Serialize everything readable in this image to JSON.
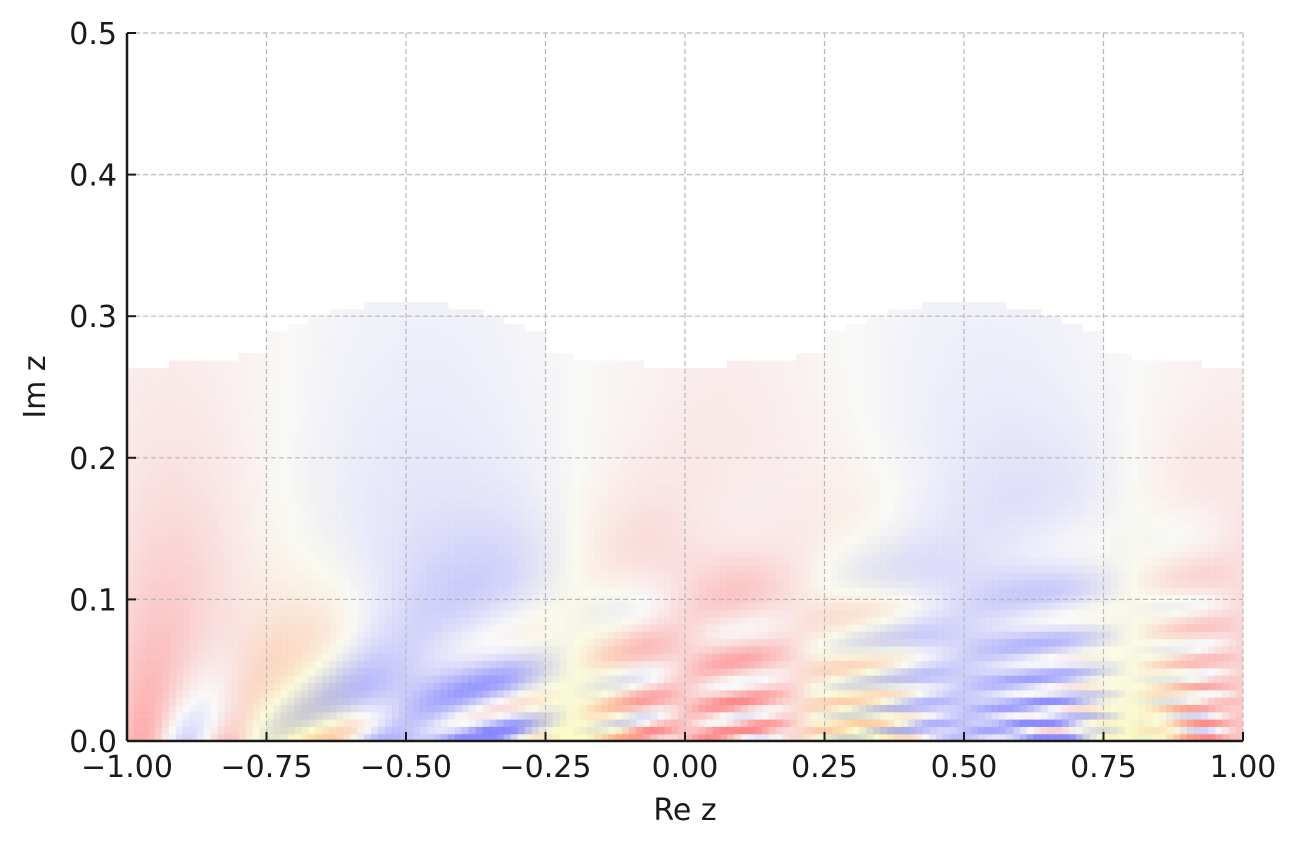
{
  "chart_data": {
    "type": "heatmap",
    "title": "",
    "xlabel": "Re z",
    "ylabel": "Im z",
    "xlim": [
      -1.0,
      1.0
    ],
    "ylim": [
      0.0,
      0.5
    ],
    "x_ticks": [
      -1.0,
      -0.75,
      -0.5,
      -0.25,
      0.0,
      0.25,
      0.5,
      0.75,
      1.0
    ],
    "x_tick_labels": [
      "−1.00",
      "−0.75",
      "−0.50",
      "−0.25",
      "0.00",
      "0.25",
      "0.50",
      "0.75",
      "1.00"
    ],
    "y_ticks": [
      0.0,
      0.1,
      0.2,
      0.3,
      0.4,
      0.5
    ],
    "y_tick_labels": [
      "0.0",
      "0.1",
      "0.2",
      "0.3",
      "0.4",
      "0.5"
    ],
    "grid": true,
    "period_x": 1.0,
    "colormap": {
      "low": "#8080ff",
      "mid": "#f8f8f8",
      "high": "#ff8080",
      "accent": "#ffff80"
    },
    "extent_top_im": 0.31,
    "note": "complex phase/modulus plot, periodic in Re z with period 1, decaying toward Im z ≈ 0.3"
  }
}
